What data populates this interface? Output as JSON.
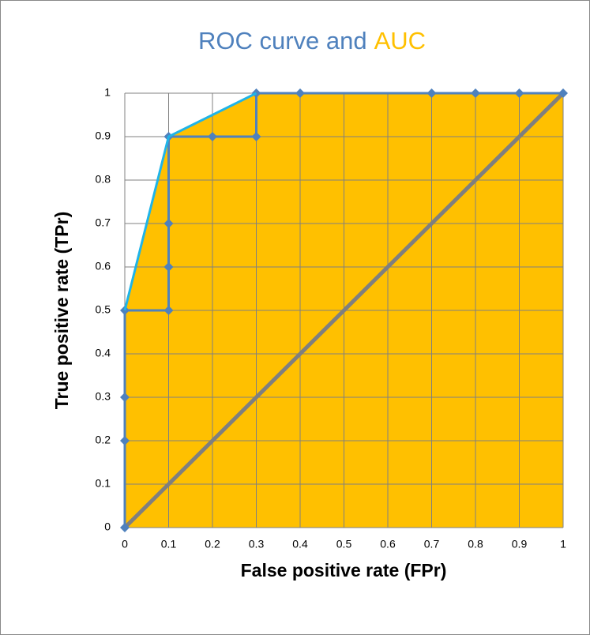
{
  "chart_data": {
    "type": "line",
    "title": "ROC curve and",
    "title_highlight": "AUC",
    "title_color": "#4f81bd",
    "title_highlight_color": "#ffc000",
    "xlabel": "False positive rate (FPr)",
    "ylabel": "True positive rate (TPr)",
    "xlim": [
      0,
      1
    ],
    "ylim": [
      0,
      1
    ],
    "xticks": [
      0,
      0.1,
      0.2,
      0.3,
      0.4,
      0.5,
      0.6,
      0.7,
      0.8,
      0.9,
      1
    ],
    "yticks": [
      0,
      0.1,
      0.2,
      0.3,
      0.4,
      0.5,
      0.6,
      0.7,
      0.8,
      0.9,
      1
    ],
    "grid": true,
    "area": {
      "color": "#ffc000",
      "x": [
        0,
        0,
        0.1,
        0.3,
        1
      ],
      "values": [
        0,
        0.5,
        0.9,
        1,
        1
      ]
    },
    "series": [
      {
        "color": "#7f7f7f",
        "width": 5,
        "marker": false,
        "x": [
          0,
          1
        ],
        "values": [
          0,
          1
        ]
      },
      {
        "color": "#4f81bd",
        "width": 3,
        "marker": true,
        "x": [
          0,
          0,
          0,
          0,
          0.1,
          0.1,
          0.1,
          0.1,
          0.2,
          0.3,
          0.3,
          0.4,
          0.7,
          0.8,
          0.9,
          1
        ],
        "values": [
          0,
          0.2,
          0.3,
          0.5,
          0.5,
          0.6,
          0.7,
          0.9,
          0.9,
          0.9,
          1,
          1,
          1,
          1,
          1,
          1
        ]
      },
      {
        "color": "#1fb4e8",
        "width": 3,
        "marker": false,
        "x": [
          0,
          0.1,
          0.3
        ],
        "values": [
          0.5,
          0.9,
          1
        ]
      }
    ]
  }
}
